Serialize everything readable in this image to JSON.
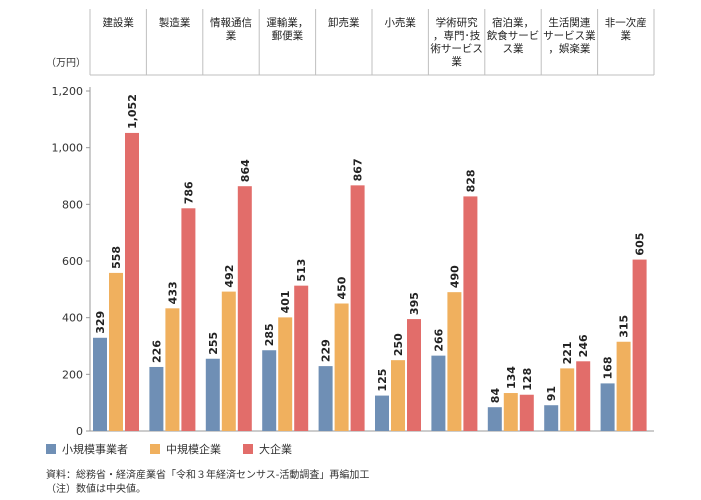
{
  "chart_data": {
    "type": "bar",
    "unit_label": "（万円）",
    "categories": [
      {
        "name": "建設業",
        "lines": [
          "建設業"
        ]
      },
      {
        "name": "製造業",
        "lines": [
          "製造業"
        ]
      },
      {
        "name": "情報通信業",
        "lines": [
          "情報通信",
          "業"
        ]
      },
      {
        "name": "運輸業，郵便業",
        "lines": [
          "運輸業，",
          "郵便業"
        ]
      },
      {
        "name": "卸売業",
        "lines": [
          "卸売業"
        ]
      },
      {
        "name": "小売業",
        "lines": [
          "小売業"
        ]
      },
      {
        "name": "学術研究，専門・技術サービス業",
        "lines": [
          "学術研究",
          "，専門･技",
          "術サービス",
          "業"
        ]
      },
      {
        "name": "宿泊業，飲食サービス業",
        "lines": [
          "宿泊業，",
          "飲食サービ",
          "ス業"
        ]
      },
      {
        "name": "生活関連サービス業，娯楽業",
        "lines": [
          "生活関連",
          "サービス業",
          "，娯楽業"
        ]
      },
      {
        "name": "非一次産業",
        "lines": [
          "非一次産",
          "業"
        ]
      }
    ],
    "series": [
      {
        "name": "小規模事業者",
        "color": "#6f8fb5",
        "values": [
          329,
          226,
          255,
          285,
          229,
          125,
          266,
          84,
          91,
          168
        ]
      },
      {
        "name": "中規模企業",
        "color": "#f0b05e",
        "values": [
          558,
          433,
          492,
          401,
          450,
          250,
          490,
          134,
          221,
          315
        ]
      },
      {
        "name": "大企業",
        "color": "#e26d6a",
        "values": [
          1052,
          786,
          864,
          513,
          867,
          395,
          828,
          128,
          246,
          605
        ]
      }
    ],
    "ylim": [
      0,
      1200
    ],
    "yticks": [
      0,
      200,
      400,
      600,
      800,
      1000,
      1200
    ],
    "ytick_labels": [
      "0",
      "200",
      "400",
      "600",
      "800",
      "1,000",
      "1,200"
    ],
    "legend_position": "bottom-left"
  },
  "notes": {
    "source": "資料：総務省・経済産業省「令和３年経済センサス-活動調査」再編加工",
    "note": "（注）数値は中央値。"
  }
}
